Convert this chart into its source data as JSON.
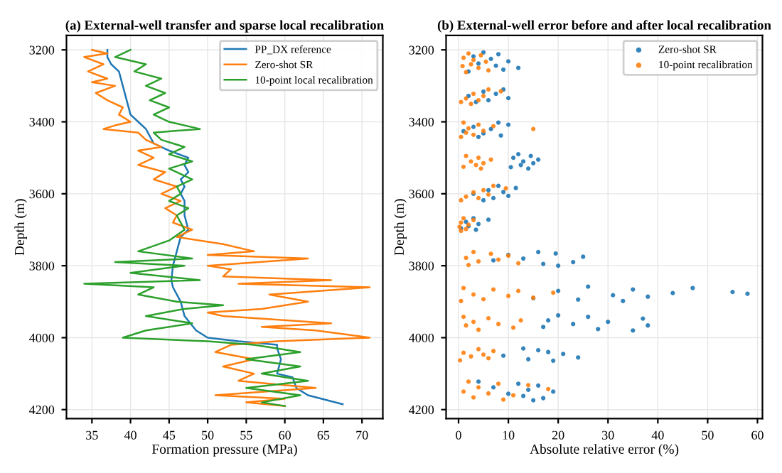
{
  "chart_data": [
    {
      "type": "line",
      "title": "(a) External-well transfer and sparse local recalibration",
      "xlabel": "Formation pressure (MPa)",
      "ylabel": "Depth (m)",
      "xlim": [
        31.7,
        72.7
      ],
      "xticks": [
        35,
        40,
        45,
        50,
        55,
        60,
        65,
        70
      ],
      "ylim": [
        4225,
        3160
      ],
      "yticks": [
        3200,
        3400,
        3600,
        3800,
        4000,
        4200
      ],
      "grid": true,
      "legend": "top right",
      "line_style": "solid",
      "series": [
        {
          "name": "PP_DX reference",
          "color": "#1f77b4",
          "x": [
            37,
            37,
            37.5,
            38.5,
            39,
            39.5,
            40,
            41,
            42,
            42.5,
            43,
            45,
            47.5,
            47,
            47.5,
            46.5,
            47,
            46.5,
            47,
            47,
            47.5,
            46.5,
            46,
            45.5,
            45.3,
            45.5,
            46,
            46.5,
            47,
            48.5,
            50,
            54,
            59,
            59,
            59.5,
            59,
            61,
            61.5,
            63,
            67.5
          ],
          "values": [
            3200,
            3220,
            3240,
            3260,
            3300,
            3340,
            3380,
            3400,
            3420,
            3440,
            3460,
            3480,
            3500,
            3520,
            3540,
            3560,
            3580,
            3600,
            3620,
            3660,
            3700,
            3720,
            3760,
            3800,
            3840,
            3860,
            3880,
            3900,
            3940,
            3980,
            4000,
            4010,
            4020,
            4030,
            4060,
            4100,
            4110,
            4140,
            4160,
            4185
          ]
        },
        {
          "name": "Zero-shot SR",
          "color": "#ff7f0e",
          "x": [
            35,
            37,
            34,
            36.5,
            34.5,
            37,
            35,
            38,
            35.5,
            37,
            39,
            38.5,
            40,
            38,
            36.5,
            41,
            42,
            44,
            41,
            43,
            41,
            44.5,
            43,
            46,
            44,
            46.5,
            44.5,
            46,
            45.5,
            48,
            46,
            52,
            56,
            50,
            63,
            50,
            53,
            52,
            66,
            54,
            71,
            58,
            63,
            57,
            50,
            52,
            66,
            57,
            64,
            71,
            59,
            53,
            51,
            56,
            52,
            56,
            54,
            64,
            51,
            60,
            55,
            60
          ],
          "values": [
            3200,
            3210,
            3220,
            3240,
            3260,
            3280,
            3290,
            3300,
            3320,
            3340,
            3360,
            3380,
            3400,
            3410,
            3420,
            3430,
            3450,
            3470,
            3480,
            3500,
            3520,
            3540,
            3560,
            3580,
            3600,
            3620,
            3640,
            3660,
            3680,
            3700,
            3720,
            3740,
            3760,
            3770,
            3780,
            3800,
            3810,
            3830,
            3840,
            3850,
            3860,
            3880,
            3900,
            3920,
            3930,
            3940,
            3960,
            3970,
            3980,
            4000,
            4010,
            4020,
            4040,
            4060,
            4080,
            4100,
            4120,
            4140,
            4160,
            4170,
            4180,
            4190
          ]
        },
        {
          "name": "10-point local recalibration",
          "color": "#2ca02c",
          "x": [
            40,
            38,
            42,
            40.5,
            44,
            42,
            44.5,
            42.5,
            45,
            43,
            45,
            49,
            43,
            44,
            47,
            45,
            48,
            45,
            48,
            46,
            46.5,
            45,
            47.5,
            46,
            47,
            45,
            41,
            48,
            38,
            47,
            40,
            49,
            34,
            43,
            41,
            46,
            52,
            47,
            42,
            48,
            42,
            39,
            50,
            56,
            62,
            55,
            62,
            57,
            63,
            55,
            62,
            57,
            60
          ],
          "values": [
            3200,
            3220,
            3240,
            3260,
            3280,
            3300,
            3320,
            3340,
            3360,
            3380,
            3400,
            3420,
            3430,
            3450,
            3470,
            3490,
            3510,
            3530,
            3560,
            3580,
            3600,
            3620,
            3640,
            3660,
            3700,
            3730,
            3760,
            3780,
            3790,
            3800,
            3820,
            3840,
            3850,
            3860,
            3880,
            3900,
            3910,
            3920,
            3940,
            3960,
            3980,
            4000,
            4010,
            4020,
            4040,
            4060,
            4080,
            4100,
            4120,
            4140,
            4160,
            4180,
            4190
          ]
        }
      ]
    },
    {
      "type": "scatter",
      "title": "(b) External-well error before and after local recalibration",
      "xlabel": "Absolute relative error (%)",
      "ylabel": "Depth (m)",
      "xlim": [
        -2.5,
        61
      ],
      "xticks": [
        0,
        10,
        20,
        30,
        40,
        50,
        60
      ],
      "ylim": [
        4225,
        3160
      ],
      "yticks": [
        3200,
        3400,
        3600,
        3800,
        4000,
        4200
      ],
      "grid": true,
      "legend": "top right",
      "marker": "circle",
      "series": [
        {
          "name": "Zero-shot SR",
          "color": "#1f77b4",
          "x": [
            5,
            8,
            3,
            6.5,
            10,
            4,
            7.5,
            12,
            9,
            2,
            9,
            5,
            7.5,
            2,
            10,
            6,
            3.5,
            8,
            10,
            3,
            6.5,
            1,
            5,
            8.5,
            4,
            12,
            14.5,
            11,
            16,
            13,
            15,
            12.5,
            10.5,
            14,
            8,
            11.5,
            6,
            9,
            3,
            10,
            7,
            5,
            3,
            6,
            1.5,
            4,
            2,
            0.5,
            3.5,
            16,
            19.5,
            10,
            25,
            13,
            7,
            23,
            17,
            20,
            26,
            47,
            35,
            20,
            55,
            43,
            58,
            31,
            38,
            15,
            24,
            33,
            20,
            26,
            37,
            18,
            30,
            23,
            38,
            17,
            28,
            35,
            13,
            16,
            18,
            21,
            9,
            24,
            14,
            19,
            4,
            12,
            16,
            7,
            14,
            19,
            10,
            13,
            17,
            15
          ],
          "values": [
            3207,
            3212,
            3218,
            3225,
            3232,
            3238,
            3244,
            3250,
            3255,
            3260,
            3310,
            3316,
            3322,
            3328,
            3334,
            3340,
            3345,
            3402,
            3408,
            3414,
            3420,
            3426,
            3432,
            3438,
            3442,
            3490,
            3495,
            3500,
            3505,
            3510,
            3515,
            3520,
            3526,
            3530,
            3578,
            3584,
            3590,
            3595,
            3600,
            3606,
            3612,
            3618,
            3668,
            3672,
            3678,
            3684,
            3690,
            3696,
            3700,
            3762,
            3766,
            3770,
            3775,
            3780,
            3785,
            3790,
            3795,
            3800,
            3858,
            3862,
            3866,
            3870,
            3873,
            3876,
            3878,
            3882,
            3886,
            3890,
            3894,
            3898,
            3938,
            3942,
            3947,
            3952,
            3956,
            3962,
            3966,
            3970,
            3976,
            3980,
            4030,
            4035,
            4040,
            4045,
            4050,
            4055,
            4060,
            4064,
            4122,
            4128,
            4133,
            4138,
            4145,
            4150,
            4156,
            4162,
            4168,
            4174
          ]
        },
        {
          "name": "10-point recalibration",
          "color": "#ff7f0e",
          "x": [
            2,
            4.5,
            1,
            3,
            5.5,
            2.5,
            0.8,
            4,
            6,
            1.5,
            6,
            8.5,
            3,
            5,
            1.5,
            4,
            0.5,
            2.5,
            1,
            4,
            7,
            2,
            15,
            5,
            1.5,
            3,
            0.5,
            1.5,
            4,
            6.5,
            2.5,
            5,
            3.5,
            1,
            4.5,
            7,
            9.5,
            5,
            3,
            6,
            1.5,
            4,
            0.5,
            1,
            3,
            0.5,
            2,
            0.2,
            1.5,
            0.5,
            3,
            6.5,
            10,
            1.5,
            8,
            4,
            12,
            2,
            1,
            7,
            12,
            19,
            3,
            10,
            15,
            5,
            0.5,
            1,
            6,
            12.5,
            3,
            8,
            1.5,
            11,
            4,
            4,
            7,
            1,
            5,
            2.5,
            6,
            0.3,
            2,
            8,
            14,
            4,
            18,
            1,
            6,
            11,
            3,
            9
          ],
          "values": [
            3210,
            3215,
            3222,
            3228,
            3233,
            3240,
            3245,
            3250,
            3257,
            3262,
            3310,
            3315,
            3322,
            3328,
            3335,
            3340,
            3345,
            3350,
            3402,
            3408,
            3412,
            3418,
            3420,
            3425,
            3430,
            3436,
            3442,
            3495,
            3500,
            3505,
            3510,
            3515,
            3520,
            3525,
            3530,
            3578,
            3585,
            3590,
            3596,
            3602,
            3608,
            3612,
            3618,
            3668,
            3673,
            3680,
            3686,
            3692,
            3698,
            3703,
            3762,
            3767,
            3772,
            3778,
            3783,
            3788,
            3793,
            3798,
            3862,
            3866,
            3870,
            3875,
            3880,
            3884,
            3889,
            3893,
            3898,
            3942,
            3946,
            3952,
            3956,
            3962,
            3966,
            3972,
            3978,
            4032,
            4037,
            4042,
            4047,
            4052,
            4057,
            4063,
            4122,
            4128,
            4132,
            4138,
            4143,
            4150,
            4155,
            4160,
            4166,
            4172
          ]
        }
      ]
    }
  ]
}
